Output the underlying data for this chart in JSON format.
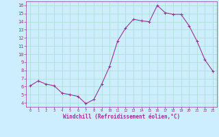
{
  "x": [
    0,
    1,
    2,
    3,
    4,
    5,
    6,
    7,
    8,
    9,
    10,
    11,
    12,
    13,
    14,
    15,
    16,
    17,
    18,
    19,
    20,
    21,
    22,
    23
  ],
  "y": [
    6.1,
    6.7,
    6.3,
    6.1,
    5.2,
    5.0,
    4.8,
    3.9,
    4.4,
    6.3,
    8.5,
    11.6,
    13.2,
    14.3,
    14.1,
    14.0,
    16.0,
    15.1,
    14.9,
    14.9,
    13.5,
    11.6,
    9.3,
    7.9
  ],
  "line_color": "#993399",
  "marker": "D",
  "marker_size": 2.0,
  "bg_color": "#cceeff",
  "grid_color": "#aaddcc",
  "xlabel": "Windchill (Refroidissement éolien,°C)",
  "xlabel_color": "#993399",
  "tick_color": "#993399",
  "ylim": [
    3.5,
    16.5
  ],
  "xlim": [
    -0.5,
    23.5
  ],
  "yticks": [
    4,
    5,
    6,
    7,
    8,
    9,
    10,
    11,
    12,
    13,
    14,
    15,
    16
  ],
  "xticks": [
    0,
    1,
    2,
    3,
    4,
    5,
    6,
    7,
    8,
    9,
    10,
    11,
    12,
    13,
    14,
    15,
    16,
    17,
    18,
    19,
    20,
    21,
    22,
    23
  ],
  "figsize": [
    3.2,
    2.0
  ],
  "dpi": 100
}
